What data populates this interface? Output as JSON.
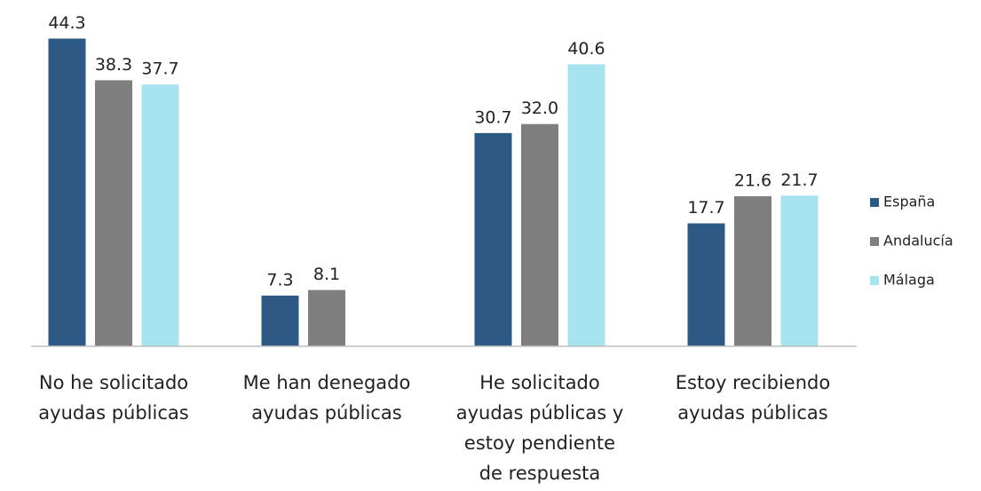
{
  "chart_data": {
    "type": "bar",
    "categories": [
      [
        "No he solicitado",
        "ayudas públicas"
      ],
      [
        "Me han denegado",
        "ayudas públicas"
      ],
      [
        "He solicitado",
        "ayudas públicas y",
        "estoy pendiente",
        "de respuesta"
      ],
      [
        "Estoy recibiendo",
        "ayudas públicas"
      ]
    ],
    "series": [
      {
        "name": "España",
        "color": "#2d5a84",
        "values": [
          44.3,
          7.3,
          30.7,
          17.7
        ],
        "value_labels": [
          "44.3",
          "7.3",
          "30.7",
          "17.7"
        ]
      },
      {
        "name": "Andalucía",
        "color": "#7f7f7f",
        "values": [
          38.3,
          8.1,
          32.0,
          21.6
        ],
        "value_labels": [
          "38.3",
          "8.1",
          "32.0",
          "21.6"
        ]
      },
      {
        "name": "Málaga",
        "color": "#a7e3ee",
        "values": [
          37.7,
          null,
          40.6,
          21.7
        ],
        "value_labels": [
          "37.7",
          null,
          "40.6",
          "21.7"
        ]
      }
    ],
    "ylim": [
      0,
      45
    ],
    "legend": "right"
  }
}
